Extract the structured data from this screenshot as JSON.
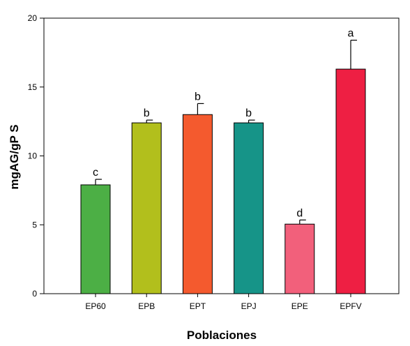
{
  "chart_data": {
    "type": "bar",
    "title": "",
    "xlabel": "Poblaciones",
    "ylabel": "mgAG/gP S",
    "ylim": [
      0,
      20
    ],
    "yticks": [
      0,
      5,
      10,
      15,
      20
    ],
    "grid": false,
    "legend": "none",
    "categories": [
      "EP60",
      "EPB",
      "EPT",
      "EPJ",
      "EPE",
      "EPFV"
    ],
    "values": [
      7.9,
      12.4,
      13.0,
      12.4,
      5.05,
      16.3
    ],
    "errors": [
      0.4,
      0.2,
      0.8,
      0.2,
      0.3,
      2.1
    ],
    "significance": [
      "c",
      "b",
      "b",
      "b",
      "d",
      "a"
    ],
    "colors": [
      "#4caf45",
      "#b2bf1c",
      "#f45a2e",
      "#169488",
      "#f2607b",
      "#ee1f43"
    ]
  }
}
